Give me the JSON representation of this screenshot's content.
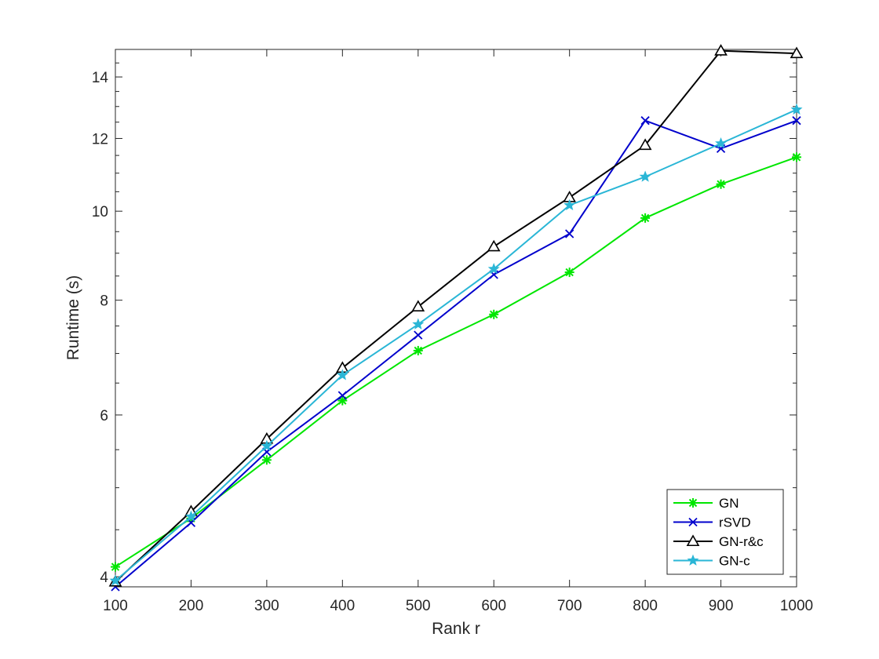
{
  "chart_data": {
    "type": "line",
    "title": "",
    "xlabel": "Rank r",
    "ylabel": "Runtime (s)",
    "x": [
      100,
      200,
      300,
      400,
      500,
      600,
      700,
      800,
      900,
      1000
    ],
    "xlim": [
      100,
      1000
    ],
    "ylim": [
      3.9,
      15
    ],
    "yscale": "log",
    "grid": false,
    "legend_position": "bottom-right",
    "xticks": [
      "100",
      "200",
      "300",
      "400",
      "500",
      "600",
      "700",
      "800",
      "900",
      "1000"
    ],
    "yticks": [
      {
        "value": 4,
        "label": "4"
      },
      {
        "value": 6,
        "label": "6"
      },
      {
        "value": 8,
        "label": "8"
      },
      {
        "value": 10,
        "label": "10"
      },
      {
        "value": 12,
        "label": "12"
      },
      {
        "value": 14,
        "label": "14"
      }
    ],
    "series": [
      {
        "name": "GN",
        "color": "#00e600",
        "marker": "asterisk",
        "values": [
          4.1,
          4.63,
          5.36,
          6.22,
          7.05,
          7.72,
          8.58,
          9.83,
          10.7,
          11.45
        ]
      },
      {
        "name": "rSVD",
        "color": "#0000cc",
        "marker": "x",
        "values": [
          3.9,
          4.58,
          5.47,
          6.3,
          7.33,
          8.53,
          9.45,
          12.55,
          11.7,
          12.55
        ]
      },
      {
        "name": "GN-r&c",
        "color": "#000000",
        "marker": "triangle",
        "values": [
          3.95,
          4.71,
          5.65,
          6.75,
          7.87,
          9.15,
          10.35,
          11.8,
          14.95,
          14.85
        ]
      },
      {
        "name": "GN-c",
        "color": "#2ab6d6",
        "marker": "star",
        "values": [
          3.96,
          4.65,
          5.55,
          6.63,
          7.53,
          8.65,
          10.15,
          10.9,
          11.85,
          12.9
        ]
      }
    ]
  }
}
